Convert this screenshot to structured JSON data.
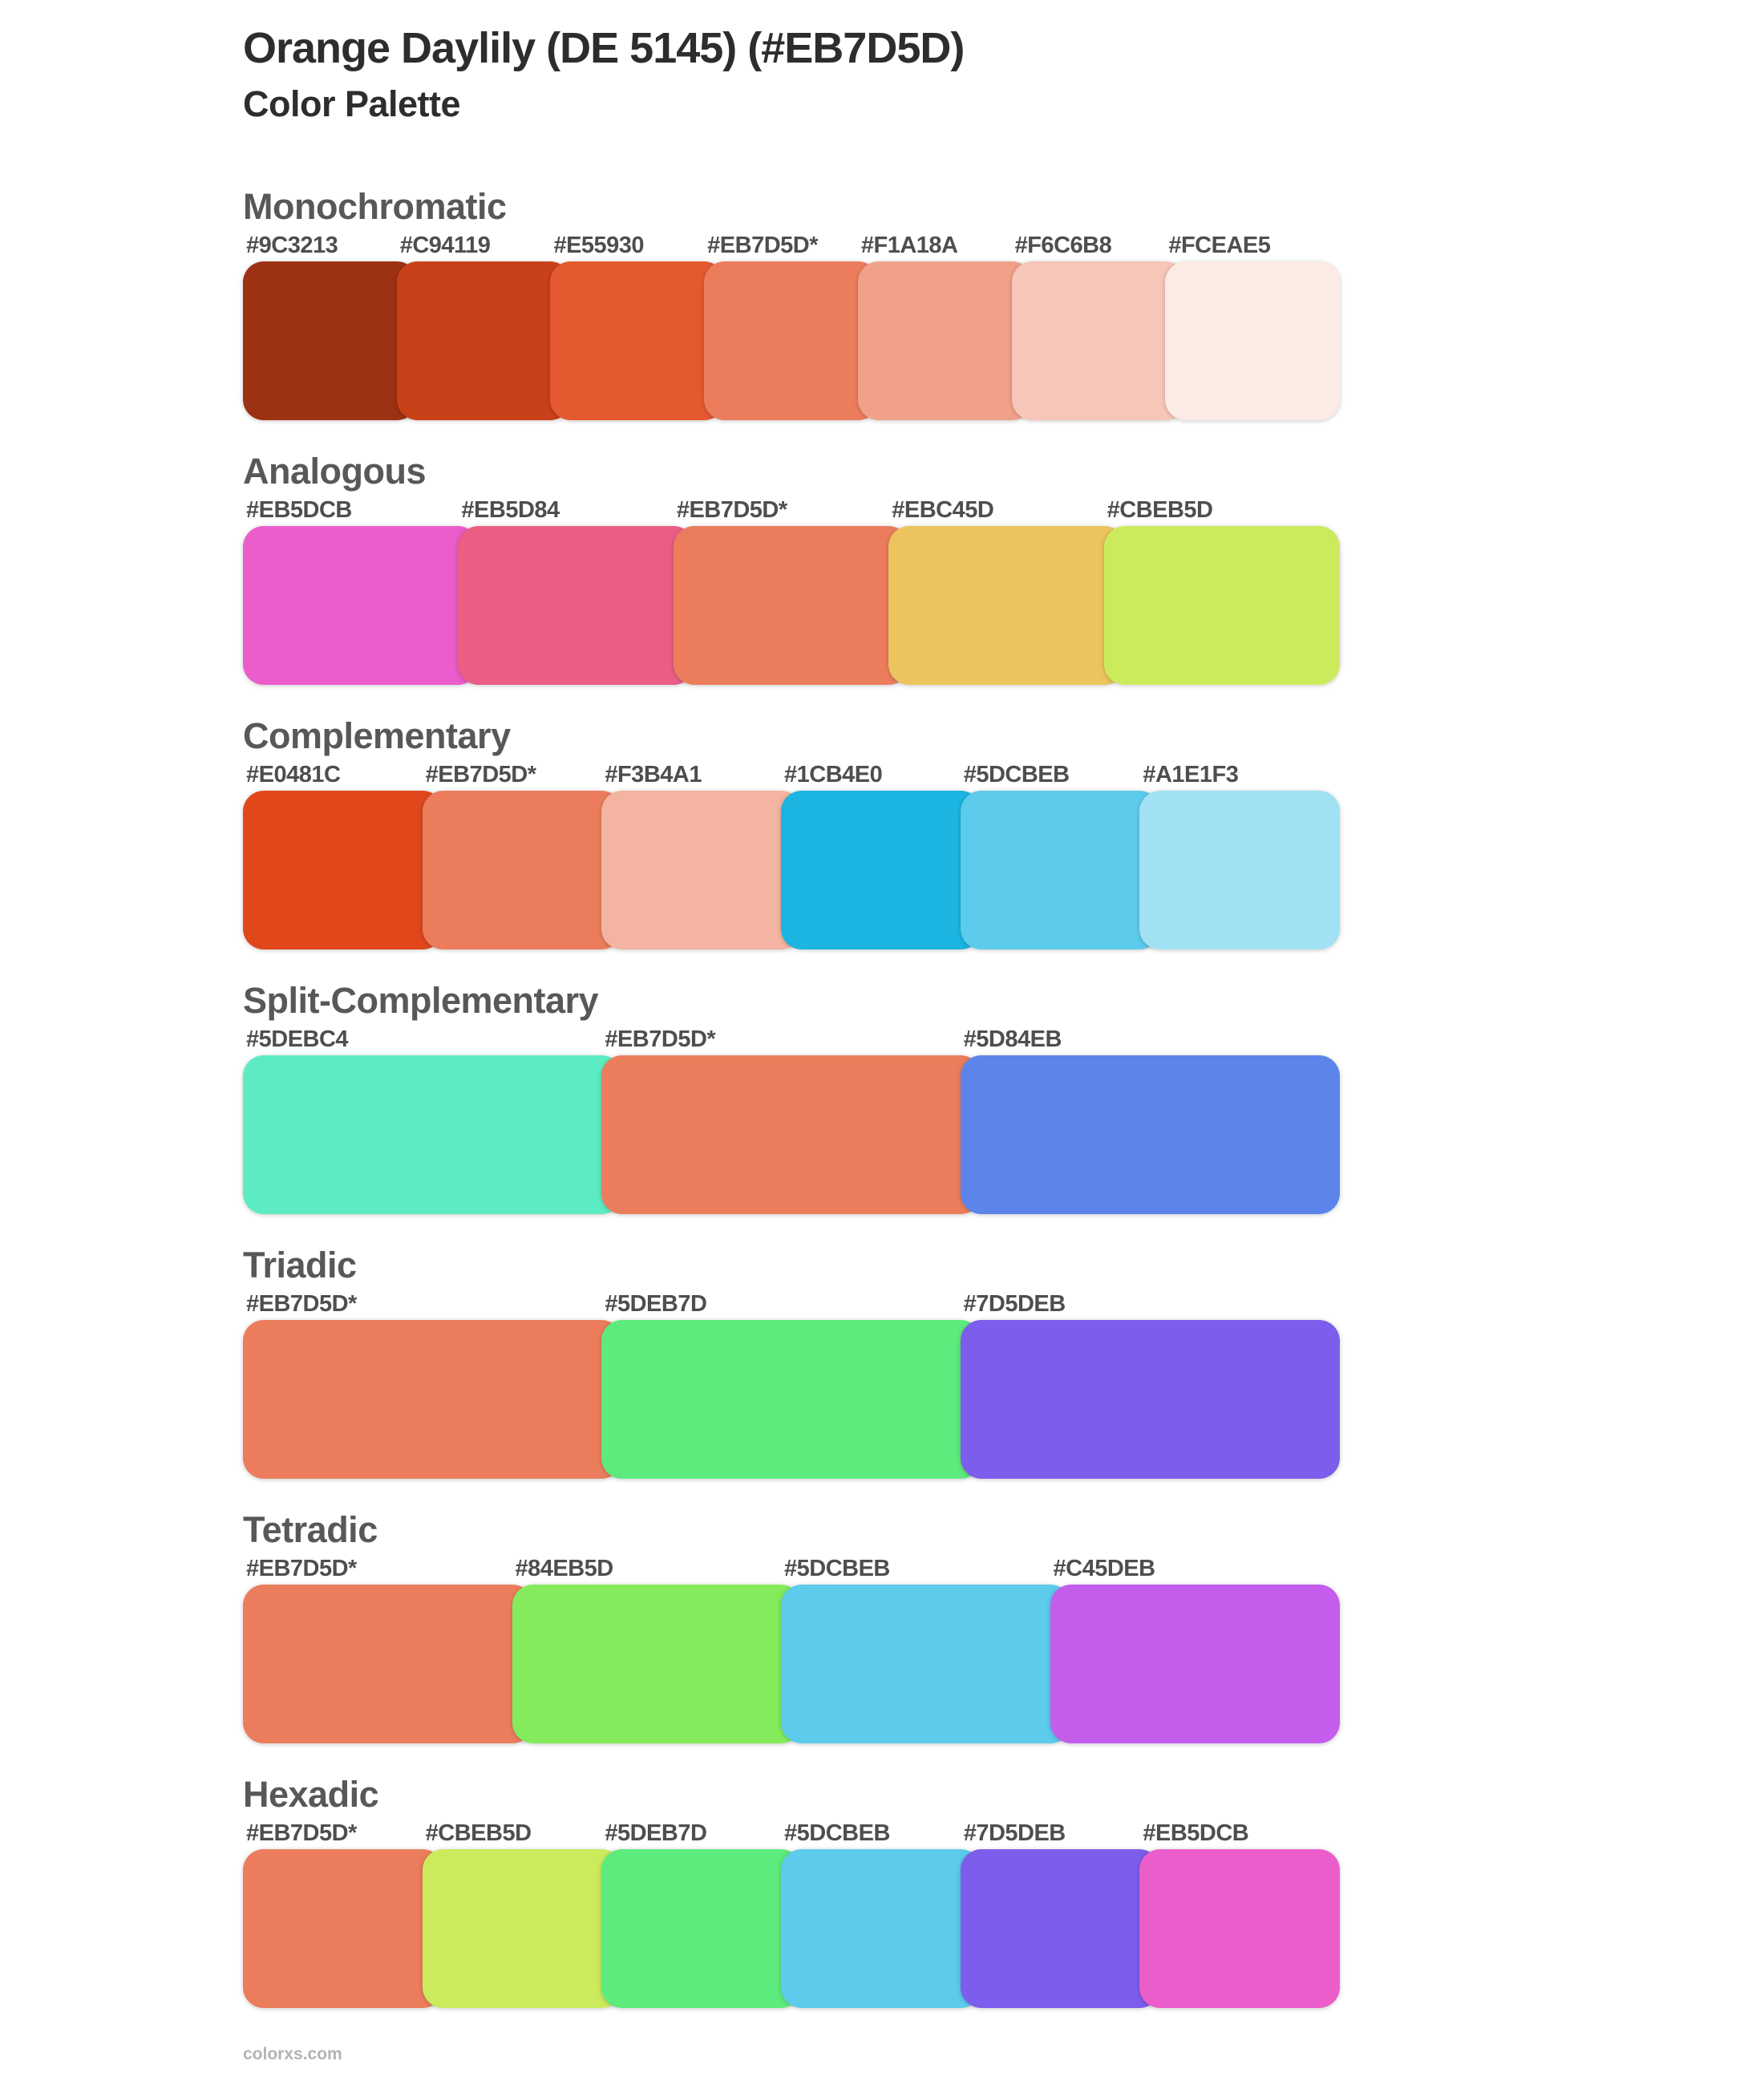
{
  "header": {
    "title": "Orange Daylily (DE 5145) (#EB7D5D)",
    "subtitle": "Color Palette"
  },
  "base_color": "#EB7D5D",
  "sections": [
    {
      "name": "Monochromatic",
      "swatches": [
        {
          "label": "#9C3213",
          "color": "#9C3213"
        },
        {
          "label": "#C94119",
          "color": "#C94119"
        },
        {
          "label": "#E55930",
          "color": "#E55930"
        },
        {
          "label": "#EB7D5D*",
          "color": "#EB7D5D"
        },
        {
          "label": "#F1A18A",
          "color": "#F1A18A"
        },
        {
          "label": "#F6C6B8",
          "color": "#F6C6B8"
        },
        {
          "label": "#FCEAE5",
          "color": "#FCEAE5"
        }
      ]
    },
    {
      "name": "Analogous",
      "swatches": [
        {
          "label": "#EB5DCB",
          "color": "#EB5DCB"
        },
        {
          "label": "#EB5D84",
          "color": "#EB5D84"
        },
        {
          "label": "#EB7D5D*",
          "color": "#EB7D5D"
        },
        {
          "label": "#EBC45D",
          "color": "#EBC45D"
        },
        {
          "label": "#CBEB5D",
          "color": "#CBEB5D"
        }
      ]
    },
    {
      "name": "Complementary",
      "swatches": [
        {
          "label": "#E0481C",
          "color": "#E0481C"
        },
        {
          "label": "#EB7D5D*",
          "color": "#EB7D5D"
        },
        {
          "label": "#F3B4A1",
          "color": "#F3B4A1"
        },
        {
          "label": "#1CB4E0",
          "color": "#1CB4E0"
        },
        {
          "label": "#5DCBEB",
          "color": "#5DCBEB"
        },
        {
          "label": "#A1E1F3",
          "color": "#A1E1F3"
        }
      ]
    },
    {
      "name": "Split-Complementary",
      "swatches": [
        {
          "label": "#5DEBC4",
          "color": "#5DEBC4"
        },
        {
          "label": "#EB7D5D*",
          "color": "#EB7D5D"
        },
        {
          "label": "#5D84EB",
          "color": "#5D84EB"
        }
      ]
    },
    {
      "name": "Triadic",
      "swatches": [
        {
          "label": "#EB7D5D*",
          "color": "#EB7D5D"
        },
        {
          "label": "#5DEB7D",
          "color": "#5DEB7D"
        },
        {
          "label": "#7D5DEB",
          "color": "#7D5DEB"
        }
      ]
    },
    {
      "name": "Tetradic",
      "swatches": [
        {
          "label": "#EB7D5D*",
          "color": "#EB7D5D"
        },
        {
          "label": "#84EB5D",
          "color": "#84EB5D"
        },
        {
          "label": "#5DCBEB",
          "color": "#5DCBEB"
        },
        {
          "label": "#C45DEB",
          "color": "#C45DEB"
        }
      ]
    },
    {
      "name": "Hexadic",
      "swatches": [
        {
          "label": "#EB7D5D*",
          "color": "#EB7D5D"
        },
        {
          "label": "#CBEB5D",
          "color": "#CBEB5D"
        },
        {
          "label": "#5DEB7D",
          "color": "#5DEB7D"
        },
        {
          "label": "#5DCBEB",
          "color": "#5DCBEB"
        },
        {
          "label": "#7D5DEB",
          "color": "#7D5DEB"
        },
        {
          "label": "#EB5DCB",
          "color": "#EB5DCB"
        }
      ]
    }
  ],
  "footer": {
    "site": "colorxs.com"
  }
}
